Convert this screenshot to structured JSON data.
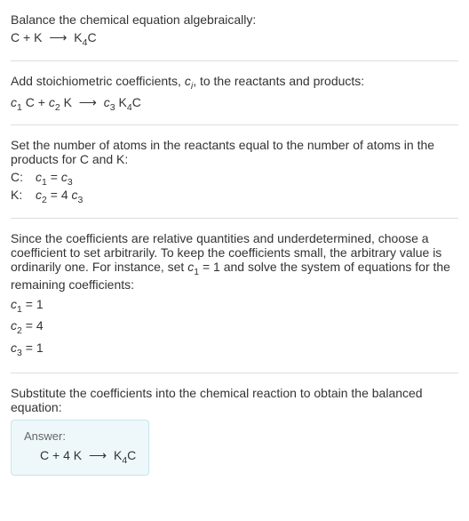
{
  "colors": {
    "text": "#333333",
    "divider": "#dddddd",
    "answer_bg": "#eef8fb",
    "answer_border": "#c8e4ec",
    "answer_label": "#666666",
    "background": "#ffffff"
  },
  "typography": {
    "body_fontsize": 14,
    "sub_fontsize_em": 0.75,
    "answer_label_fontsize": 13
  },
  "step1": {
    "instruction": "Balance the chemical equation algebraically:",
    "reactant1": "C",
    "plus1": "+",
    "reactant2": "K",
    "arrow": "⟶",
    "product": "K",
    "product_sub": "4",
    "product_tail": "C"
  },
  "step2": {
    "instruction_pre": "Add stoichiometric coefficients, ",
    "ci_var": "c",
    "ci_sub": "i",
    "instruction_post": ", to the reactants and products:",
    "c1": "c",
    "c1_sub": "1",
    "sp1": " ",
    "r1": "C",
    "plus1": "+",
    "c2": "c",
    "c2_sub": "2",
    "sp2": " ",
    "r2": "K",
    "arrow": "⟶",
    "c3": "c",
    "c3_sub": "3",
    "sp3": " ",
    "p1": "K",
    "p1_sub": "4",
    "p1_tail": "C"
  },
  "step3": {
    "instruction": "Set the number of atoms in the reactants equal to the number of atoms in the products for C and K:",
    "rows": [
      {
        "label": "C:",
        "lhs_var": "c",
        "lhs_sub": "1",
        "eq": " = ",
        "rhs_coeff": "",
        "rhs_var": "c",
        "rhs_sub": "3"
      },
      {
        "label": "K:",
        "lhs_var": "c",
        "lhs_sub": "2",
        "eq": " = ",
        "rhs_coeff": "4 ",
        "rhs_var": "c",
        "rhs_sub": "3"
      }
    ]
  },
  "step4": {
    "instruction_pre": "Since the coefficients are relative quantities and underdetermined, choose a coefficient to set arbitrarily. To keep the coefficients small, the arbitrary value is ordinarily one. For instance, set ",
    "set_var": "c",
    "set_sub": "1",
    "set_eq": " = 1",
    "instruction_post": " and solve the system of equations for the remaining coefficients:",
    "solutions": [
      {
        "var": "c",
        "sub": "1",
        "eq": " = ",
        "val": "1"
      },
      {
        "var": "c",
        "sub": "2",
        "eq": " = ",
        "val": "4"
      },
      {
        "var": "c",
        "sub": "3",
        "eq": " = ",
        "val": "1"
      }
    ]
  },
  "step5": {
    "instruction": "Substitute the coefficients into the chemical reaction to obtain the balanced equation:",
    "answer_label": "Answer:",
    "r1": "C",
    "plus1": "+",
    "coeff2": "4 ",
    "r2": "K",
    "arrow": "⟶",
    "p1": "K",
    "p1_sub": "4",
    "p1_tail": "C"
  }
}
